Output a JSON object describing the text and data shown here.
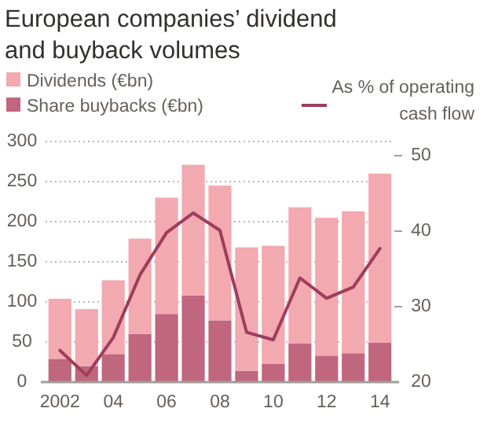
{
  "chart_data": {
    "type": "bar",
    "title": "European companies’ dividend and buyback volumes",
    "stacked": true,
    "categories": [
      "2002",
      null,
      "04",
      null,
      "06",
      null,
      "08",
      null,
      "10",
      null,
      "12",
      null,
      "14"
    ],
    "series": [
      {
        "name": "Share buybacks (€bn)",
        "color": "#c0667f",
        "values": [
          29,
          20,
          35,
          60,
          85,
          108,
          77,
          14,
          23,
          48,
          33,
          36,
          49
        ]
      },
      {
        "name": "Dividends (€bn)",
        "color": "#f2a9b0",
        "values": [
          75,
          71,
          92,
          119,
          145,
          163,
          168,
          154,
          147,
          170,
          172,
          177,
          211
        ]
      },
      {
        "name": "As % of operating cash flow",
        "type": "line",
        "axis": "y2",
        "color": "#9e3d5c",
        "values": [
          24.2,
          20.9,
          25.9,
          34.2,
          39.8,
          42.4,
          40.1,
          26.6,
          25.6,
          33.8,
          31.1,
          32.6,
          37.7
        ]
      }
    ],
    "ylim": [
      0,
      300
    ],
    "yticks": [
      0,
      50,
      100,
      150,
      200,
      250,
      300
    ],
    "y2lim": [
      20,
      50
    ],
    "y2ticks": [
      20,
      30,
      40,
      50
    ],
    "grid": "y",
    "legend": "top",
    "marker": "none",
    "line_style": "solid"
  }
}
